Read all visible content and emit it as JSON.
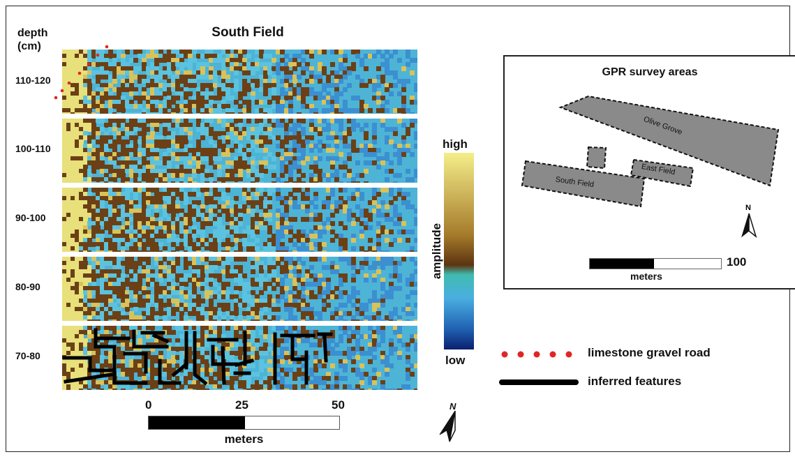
{
  "figure": {
    "main_title": "South Field",
    "depth_header": [
      "depth",
      "(cm)"
    ],
    "slices": [
      {
        "label": "110-120",
        "has_road": true,
        "has_features": false
      },
      {
        "label": "100-110",
        "has_road": false,
        "has_features": false
      },
      {
        "label": "90-100",
        "has_road": false,
        "has_features": false
      },
      {
        "label": "80-90",
        "has_road": false,
        "has_features": false
      },
      {
        "label": "70-80",
        "has_road": false,
        "has_features": true
      }
    ],
    "scale_bar": {
      "ticks": [
        "0",
        "25",
        "50"
      ],
      "unit": "meters"
    },
    "north_label": "N",
    "colorbar": {
      "high": "high",
      "low": "low",
      "title": "amplitude",
      "colors": [
        "#f4ee8a",
        "#a57a2a",
        "#5c3410",
        "#3fbcb0",
        "#4aaee0",
        "#1f5fb0",
        "#0b1f6e"
      ]
    },
    "legend": [
      {
        "label": "limestone gravel road",
        "style": "dots",
        "color": "#e02626"
      },
      {
        "label": "inferred features",
        "style": "thick-line",
        "color": "#000000"
      }
    ]
  },
  "inset_map": {
    "title": "GPR survey areas",
    "areas": [
      "Olive Grove",
      "East Field",
      "South Field"
    ],
    "north_label": "N",
    "scale_bar": {
      "value": "100",
      "unit": "meters"
    }
  }
}
